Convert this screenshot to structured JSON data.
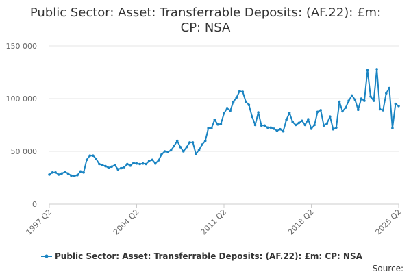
{
  "chart_data": {
    "type": "line",
    "title_line1": "Public Sector: Asset: Transferrable Deposits: (AF.22): £m:",
    "title_line2": "CP: NSA",
    "xlabel": "",
    "ylabel": "",
    "ylim": [
      0,
      150000
    ],
    "y_ticks": [
      0,
      50000,
      100000,
      150000
    ],
    "y_tick_labels": [
      "0",
      "50 000",
      "100 000",
      "150 000"
    ],
    "x_tick_labels": [
      "1997 Q2",
      "2004 Q2",
      "2011 Q2",
      "2018 Q2",
      "2025 Q2"
    ],
    "x_tick_indices": [
      0,
      28,
      56,
      84,
      112
    ],
    "grid": true,
    "legend_position": "bottom",
    "source_label": "Source:",
    "colors": {
      "series": "#1a84c2",
      "grid": "#e6e6e6",
      "axis": "#cccccc"
    },
    "series": [
      {
        "name": "Public Sector: Asset: Transferrable Deposits: (AF.22): £m: CP: NSA",
        "start": "1997 Q2",
        "frequency": "quarterly",
        "values": [
          28000,
          30000,
          30000,
          28000,
          29000,
          30500,
          29000,
          27000,
          26500,
          27500,
          31000,
          30000,
          42000,
          46000,
          46000,
          43000,
          38000,
          37000,
          36000,
          34500,
          35500,
          37000,
          33000,
          34000,
          35000,
          38000,
          36500,
          39000,
          38500,
          38000,
          38500,
          38000,
          41000,
          42000,
          38500,
          41500,
          47000,
          50000,
          49500,
          51000,
          55000,
          60000,
          54000,
          50000,
          54000,
          58500,
          58500,
          47500,
          51500,
          56500,
          60000,
          72000,
          72000,
          80000,
          75500,
          76000,
          86000,
          91000,
          88500,
          97000,
          101000,
          107000,
          106500,
          97000,
          94000,
          83000,
          75000,
          87000,
          74500,
          74500,
          72500,
          72500,
          71500,
          69500,
          71000,
          69000,
          80000,
          86500,
          78000,
          75000,
          77000,
          79000,
          75000,
          80500,
          71500,
          75000,
          87500,
          89000,
          74500,
          76500,
          83000,
          71000,
          72500,
          97000,
          88000,
          91500,
          98000,
          103000,
          99000,
          89500,
          100000,
          98000,
          127000,
          102000,
          98000,
          128000,
          90000,
          89000,
          105000,
          110000,
          72000,
          95000,
          93000
        ]
      }
    ]
  }
}
